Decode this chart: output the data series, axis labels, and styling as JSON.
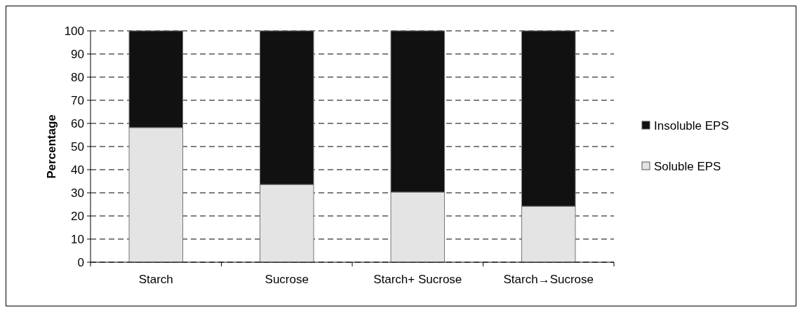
{
  "chart_data": {
    "type": "bar",
    "stacked": true,
    "ylabel": "Percentage",
    "categories": [
      "Starch",
      "Sucrose",
      "Starch+ Sucrose",
      "Starch→Sucrose"
    ],
    "series": [
      {
        "name": "Soluble EPS",
        "color": "#e4e4e4",
        "values": [
          58.2,
          33.6,
          30.3,
          24.2
        ]
      },
      {
        "name": "Insoluble EPS",
        "color": "#111111",
        "values": [
          41.8,
          66.4,
          69.7,
          75.8
        ]
      }
    ],
    "ylim": [
      0,
      100
    ],
    "yticks": [
      0,
      10,
      20,
      30,
      40,
      50,
      60,
      70,
      80,
      90,
      100
    ],
    "grid": "y",
    "line_style": "dashed",
    "legend": "right"
  }
}
